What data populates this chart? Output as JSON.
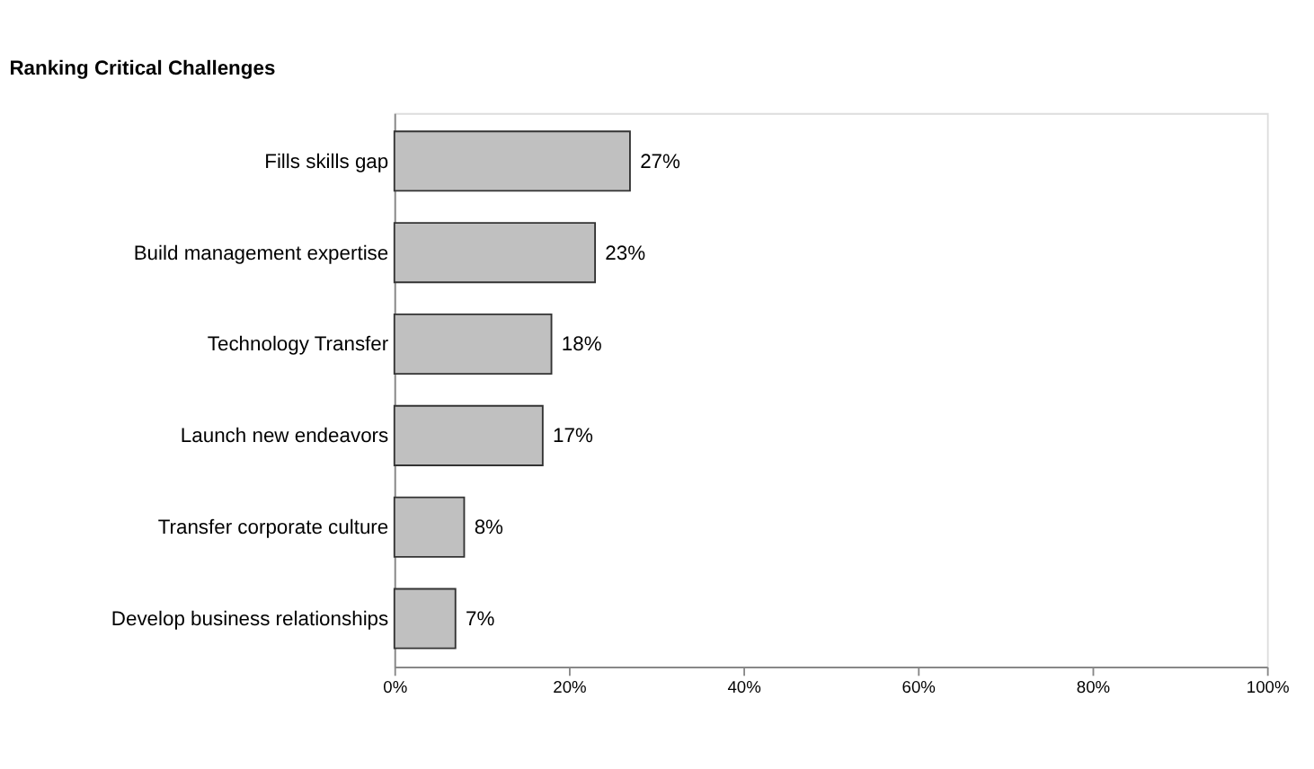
{
  "chart_data": {
    "type": "bar",
    "orientation": "horizontal",
    "title": "Ranking Critical Challenges",
    "categories": [
      "Fills skills gap",
      "Build management expertise",
      "Technology Transfer",
      "Launch new endeavors",
      "Transfer corporate culture",
      "Develop business relationships"
    ],
    "values": [
      27,
      23,
      18,
      17,
      8,
      7
    ],
    "value_labels": [
      "27%",
      "23%",
      "18%",
      "17%",
      "8%",
      "7%"
    ],
    "color": "#c0c0c0",
    "xlim": [
      0,
      100
    ],
    "xticks": [
      {
        "value": 0,
        "label": "0%"
      },
      {
        "value": 20,
        "label": "20%"
      },
      {
        "value": 40,
        "label": "40%"
      },
      {
        "value": 60,
        "label": "60%"
      },
      {
        "value": 80,
        "label": "80%"
      },
      {
        "value": 100,
        "label": "100%"
      }
    ],
    "grid": false
  }
}
